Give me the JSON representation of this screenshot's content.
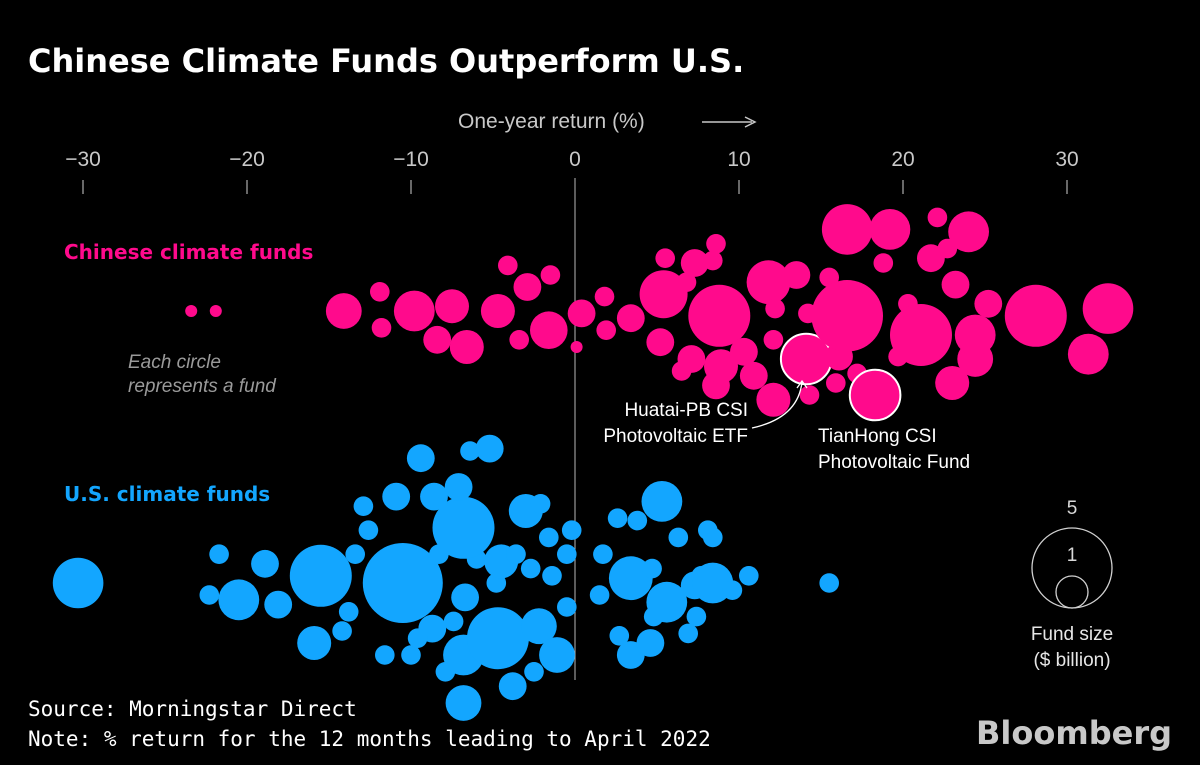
{
  "title": "Chinese Climate Funds Outperform U.S.",
  "axis": {
    "label": "One-year return (%)"
  },
  "chart_data": {
    "type": "scatter",
    "variant": "beeswarm",
    "xlabel": "One-year return (%)",
    "xlim": [
      -33,
      34
    ],
    "xticks": [
      -30,
      -20,
      -10,
      0,
      10,
      20,
      30
    ],
    "xtick_labels": [
      "−30",
      "−20",
      "−10",
      "0",
      "10",
      "20",
      "30"
    ],
    "size_unit": "Fund size ($ billion)",
    "series": [
      {
        "name": "Chinese climate funds",
        "color": "#ff0a8c",
        "points": [
          {
            "x": -23.4,
            "row": 0,
            "size": 0.1
          },
          {
            "x": -21.9,
            "row": 0,
            "size": 0.1
          },
          {
            "x": -14.1,
            "row": 0,
            "size": 1.0
          },
          {
            "x": -11.9,
            "row": -0.8,
            "size": 0.3
          },
          {
            "x": -11.8,
            "row": 0.7,
            "size": 0.3
          },
          {
            "x": -9.8,
            "row": 0,
            "size": 1.3
          },
          {
            "x": -8.4,
            "row": 1.2,
            "size": 0.6
          },
          {
            "x": -7.5,
            "row": -0.2,
            "size": 0.9
          },
          {
            "x": -6.6,
            "row": 1.5,
            "size": 0.9
          },
          {
            "x": -4.7,
            "row": 0,
            "size": 0.9
          },
          {
            "x": -4.1,
            "row": -1.9,
            "size": 0.3
          },
          {
            "x": -3.4,
            "row": 1.2,
            "size": 0.3
          },
          {
            "x": -2.9,
            "row": -1.0,
            "size": 0.6
          },
          {
            "x": -1.6,
            "row": 0.8,
            "size": 1.1
          },
          {
            "x": -1.5,
            "row": -1.5,
            "size": 0.3
          },
          {
            "x": 0.1,
            "row": 1.5,
            "size": 0.1
          },
          {
            "x": 0.4,
            "row": 0.1,
            "size": 0.6
          },
          {
            "x": 1.8,
            "row": -0.6,
            "size": 0.3
          },
          {
            "x": 1.9,
            "row": 0.8,
            "size": 0.3
          },
          {
            "x": 3.4,
            "row": 0.3,
            "size": 0.6
          },
          {
            "x": 5.2,
            "row": 1.3,
            "size": 0.6
          },
          {
            "x": 5.4,
            "row": -0.7,
            "size": 1.8
          },
          {
            "x": 5.5,
            "row": -2.2,
            "size": 0.3
          },
          {
            "x": 6.8,
            "row": -1.2,
            "size": 0.3
          },
          {
            "x": 6.5,
            "row": 2.5,
            "size": 0.3
          },
          {
            "x": 7.1,
            "row": 2.0,
            "size": 0.6
          },
          {
            "x": 7.3,
            "row": -2.0,
            "size": 0.6
          },
          {
            "x": 8.4,
            "row": -2.1,
            "size": 0.3
          },
          {
            "x": 8.6,
            "row": 3.1,
            "size": 0.6
          },
          {
            "x": 8.8,
            "row": 0.2,
            "size": 3.0
          },
          {
            "x": 8.6,
            "row": -2.8,
            "size": 0.3
          },
          {
            "x": 8.9,
            "row": 2.3,
            "size": 0.9
          },
          {
            "x": 10.3,
            "row": 1.7,
            "size": 0.6
          },
          {
            "x": 10.9,
            "row": 2.7,
            "size": 0.6
          },
          {
            "x": 11.8,
            "row": -1.2,
            "size": 1.5
          },
          {
            "x": 12.1,
            "row": 1.2,
            "size": 0.3
          },
          {
            "x": 12.1,
            "row": 3.7,
            "size": 0.9
          },
          {
            "x": 12.2,
            "row": -0.1,
            "size": 0.3
          },
          {
            "x": 13.5,
            "row": -1.5,
            "size": 0.6
          },
          {
            "x": 14.2,
            "row": 0.1,
            "size": 0.3
          },
          {
            "x": 14.1,
            "row": 2.0,
            "size": 2.0,
            "label": "Huatai-PB CSI Photovoltaic ETF"
          },
          {
            "x": 14.3,
            "row": 3.5,
            "size": 0.3
          },
          {
            "x": 15.5,
            "row": -1.4,
            "size": 0.3
          },
          {
            "x": 15.9,
            "row": 3.0,
            "size": 0.3
          },
          {
            "x": 16.1,
            "row": 1.9,
            "size": 0.6
          },
          {
            "x": 16.6,
            "row": 0.2,
            "size": 4.0
          },
          {
            "x": 17.2,
            "row": 2.6,
            "size": 0.3
          },
          {
            "x": 16.6,
            "row": -3.4,
            "size": 2.0
          },
          {
            "x": 18.3,
            "row": 3.5,
            "size": 2.0,
            "label": "TianHong CSI Photovoltaic Fund"
          },
          {
            "x": 18.8,
            "row": -2.0,
            "size": 0.3
          },
          {
            "x": 19.2,
            "row": -3.4,
            "size": 1.3
          },
          {
            "x": 19.7,
            "row": 1.9,
            "size": 0.3
          },
          {
            "x": 20.3,
            "row": -0.3,
            "size": 0.3
          },
          {
            "x": 21.1,
            "row": 1.0,
            "size": 3.0
          },
          {
            "x": 21.7,
            "row": -2.2,
            "size": 0.6
          },
          {
            "x": 22.1,
            "row": -3.9,
            "size": 0.3
          },
          {
            "x": 22.7,
            "row": -2.6,
            "size": 0.3
          },
          {
            "x": 23.0,
            "row": 3.0,
            "size": 0.9
          },
          {
            "x": 23.2,
            "row": -1.1,
            "size": 0.6
          },
          {
            "x": 24.0,
            "row": -3.3,
            "size": 1.3
          },
          {
            "x": 24.4,
            "row": 2.0,
            "size": 1.0
          },
          {
            "x": 24.4,
            "row": 1.0,
            "size": 1.3
          },
          {
            "x": 25.2,
            "row": -0.3,
            "size": 0.6
          },
          {
            "x": 28.1,
            "row": 0.2,
            "size": 3.0
          },
          {
            "x": 31.3,
            "row": 1.8,
            "size": 1.3
          },
          {
            "x": 32.5,
            "row": -0.1,
            "size": 2.0
          }
        ]
      },
      {
        "name": "U.S. climate funds",
        "color": "#13a6ff",
        "points": [
          {
            "x": -30.3,
            "row": 0,
            "size": 2.0
          },
          {
            "x": -21.7,
            "row": -1.2,
            "size": 0.3
          },
          {
            "x": -22.3,
            "row": 0.5,
            "size": 0.3
          },
          {
            "x": -20.5,
            "row": 0.7,
            "size": 1.3
          },
          {
            "x": -18.9,
            "row": -0.8,
            "size": 0.6
          },
          {
            "x": -18.1,
            "row": 0.9,
            "size": 0.6
          },
          {
            "x": -15.5,
            "row": -0.3,
            "size": 3.0
          },
          {
            "x": -15.9,
            "row": 2.5,
            "size": 0.9
          },
          {
            "x": -13.4,
            "row": -1.2,
            "size": 0.3
          },
          {
            "x": -14.2,
            "row": 2.0,
            "size": 0.3
          },
          {
            "x": -13.8,
            "row": 1.2,
            "size": 0.3
          },
          {
            "x": -12.9,
            "row": -3.2,
            "size": 0.3
          },
          {
            "x": -12.6,
            "row": -2.2,
            "size": 0.3
          },
          {
            "x": -10.9,
            "row": -3.6,
            "size": 0.6
          },
          {
            "x": -10.5,
            "row": 0,
            "size": 5.0
          },
          {
            "x": -11.6,
            "row": 3.0,
            "size": 0.3
          },
          {
            "x": -10.0,
            "row": 3.0,
            "size": 0.3
          },
          {
            "x": -9.4,
            "row": -5.2,
            "size": 0.6
          },
          {
            "x": -8.7,
            "row": 1.9,
            "size": 0.6
          },
          {
            "x": -8.3,
            "row": -1.2,
            "size": 0.3
          },
          {
            "x": -8.6,
            "row": -3.6,
            "size": 0.6
          },
          {
            "x": -9.6,
            "row": 2.3,
            "size": 0.3
          },
          {
            "x": -7.9,
            "row": 3.7,
            "size": 0.3
          },
          {
            "x": -7.3,
            "row": -2.6,
            "size": 0.3
          },
          {
            "x": -7.4,
            "row": 1.6,
            "size": 0.3
          },
          {
            "x": -6.8,
            "row": 3.0,
            "size": 1.3
          },
          {
            "x": -6.8,
            "row": 5.0,
            "size": 1.0
          },
          {
            "x": -6.0,
            "row": -1.0,
            "size": 0.3
          },
          {
            "x": -6.4,
            "row": -5.5,
            "size": 0.3
          },
          {
            "x": -6.8,
            "row": -2.1,
            "size": 0.3
          },
          {
            "x": -6.7,
            "row": 0.6,
            "size": 0.6
          },
          {
            "x": -6.8,
            "row": -2.3,
            "size": 3.0
          },
          {
            "x": -7.1,
            "row": -4.0,
            "size": 0.6
          },
          {
            "x": -5.2,
            "row": -5.6,
            "size": 0.6
          },
          {
            "x": -4.8,
            "row": 0,
            "size": 0.3
          },
          {
            "x": -4.7,
            "row": 2.3,
            "size": 3.0
          },
          {
            "x": -4.5,
            "row": -0.9,
            "size": 0.9
          },
          {
            "x": -3.8,
            "row": 4.3,
            "size": 0.6
          },
          {
            "x": -3.0,
            "row": -3.0,
            "size": 0.9
          },
          {
            "x": -3.6,
            "row": -1.2,
            "size": 0.3
          },
          {
            "x": -2.2,
            "row": 1.8,
            "size": 1.0
          },
          {
            "x": -2.7,
            "row": -0.6,
            "size": 0.3
          },
          {
            "x": -2.5,
            "row": 3.7,
            "size": 0.3
          },
          {
            "x": -2.1,
            "row": -3.3,
            "size": 0.3
          },
          {
            "x": -1.6,
            "row": -1.9,
            "size": 0.3
          },
          {
            "x": -1.4,
            "row": -0.3,
            "size": 0.3
          },
          {
            "x": -1.1,
            "row": 3.0,
            "size": 1.0
          },
          {
            "x": -0.5,
            "row": 1.0,
            "size": 0.3
          },
          {
            "x": -0.5,
            "row": -1.2,
            "size": 0.3
          },
          {
            "x": -0.2,
            "row": -2.2,
            "size": 0.3
          },
          {
            "x": 1.5,
            "row": 0.5,
            "size": 0.3
          },
          {
            "x": 1.7,
            "row": -1.2,
            "size": 0.3
          },
          {
            "x": 2.6,
            "row": -2.7,
            "size": 0.3
          },
          {
            "x": 2.7,
            "row": 2.2,
            "size": 0.3
          },
          {
            "x": 3.4,
            "row": -0.2,
            "size": 1.5
          },
          {
            "x": 3.4,
            "row": 3.0,
            "size": 0.6
          },
          {
            "x": 3.8,
            "row": -2.6,
            "size": 0.3
          },
          {
            "x": 4.6,
            "row": 2.5,
            "size": 0.6
          },
          {
            "x": 4.7,
            "row": -0.6,
            "size": 0.3
          },
          {
            "x": 4.8,
            "row": 1.4,
            "size": 0.3
          },
          {
            "x": 5.3,
            "row": -3.4,
            "size": 1.3
          },
          {
            "x": 5.6,
            "row": 0.8,
            "size": 1.3
          },
          {
            "x": 6.3,
            "row": -1.9,
            "size": 0.3
          },
          {
            "x": 6.9,
            "row": 2.1,
            "size": 0.3
          },
          {
            "x": 7.3,
            "row": 0.1,
            "size": 0.6
          },
          {
            "x": 7.7,
            "row": -0.3,
            "size": 0.3
          },
          {
            "x": 7.4,
            "row": 1.4,
            "size": 0.3
          },
          {
            "x": 8.1,
            "row": -2.2,
            "size": 0.3
          },
          {
            "x": 8.4,
            "row": -1.9,
            "size": 0.3
          },
          {
            "x": 8.4,
            "row": 0,
            "size": 1.3
          },
          {
            "x": 9.6,
            "row": 0.3,
            "size": 0.3
          },
          {
            "x": 10.6,
            "row": -0.3,
            "size": 0.3
          },
          {
            "x": 15.5,
            "row": 0,
            "size": 0.3
          }
        ]
      }
    ],
    "annotations": [
      {
        "lines": [
          "Each circle",
          "represents a fund"
        ]
      },
      {
        "lines": [
          "Huatai-PB CSI",
          "Photovoltaic ETF"
        ]
      },
      {
        "lines": [
          "TianHong CSI",
          "Photovoltaic Fund"
        ]
      }
    ],
    "size_legend": {
      "values": [
        5,
        1
      ],
      "labels": [
        "5",
        "1"
      ],
      "title_lines": [
        "Fund size",
        "($ billion)"
      ]
    }
  },
  "footer": {
    "source": "Source: Morningstar Direct",
    "note": "Note: % return for the 12 months leading to April 2022",
    "brand": "Bloomberg"
  }
}
